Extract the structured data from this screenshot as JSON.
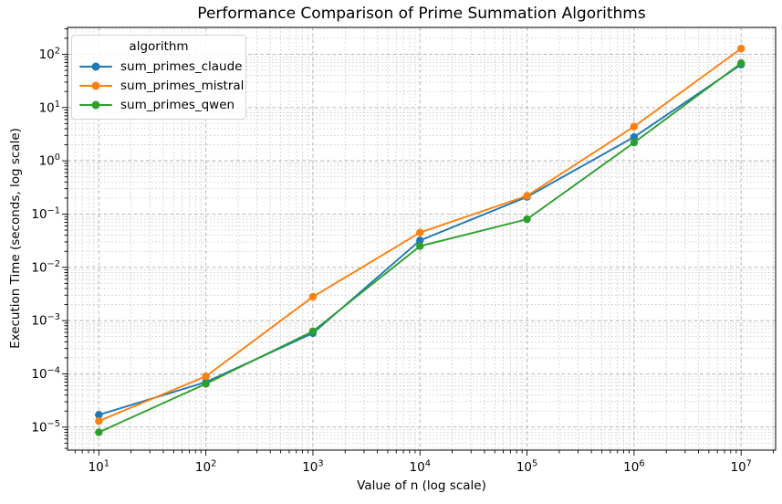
{
  "chart_data": {
    "type": "line",
    "title": "Performance Comparison of Prime Summation Algorithms",
    "xlabel": "Value of n (log scale)",
    "ylabel": "Execution Time (seconds, log scale)",
    "x_scale": "log",
    "y_scale": "log",
    "grid": {
      "which": "both",
      "style": "dashed",
      "major_color": "#b0b0b0",
      "minor_color": "#c7c7c7"
    },
    "x": [
      10,
      100,
      1000,
      10000,
      100000,
      1000000,
      10000000
    ],
    "series": [
      {
        "name": "sum_primes_claude",
        "color": "#1f77b4",
        "values": [
          1.7e-05,
          7e-05,
          0.00058,
          0.032,
          0.21,
          2.8,
          64
        ]
      },
      {
        "name": "sum_primes_mistral",
        "color": "#ff7f0e",
        "values": [
          1.3e-05,
          9e-05,
          0.0028,
          0.045,
          0.22,
          4.4,
          128
        ]
      },
      {
        "name": "sum_primes_qwen",
        "color": "#2ca02c",
        "values": [
          8e-06,
          6.5e-05,
          0.00063,
          0.025,
          0.08,
          2.2,
          68
        ]
      }
    ],
    "legend": {
      "title": "algorithm",
      "position": "upper left"
    },
    "xlim": [
      5.1,
      21000000
    ],
    "ylim": [
      3.7e-06,
      320
    ],
    "x_tick_exponents": [
      1,
      2,
      3,
      4,
      5,
      6,
      7
    ],
    "y_tick_exponents": [
      -5,
      -4,
      -3,
      -2,
      -1,
      0,
      1,
      2
    ]
  }
}
